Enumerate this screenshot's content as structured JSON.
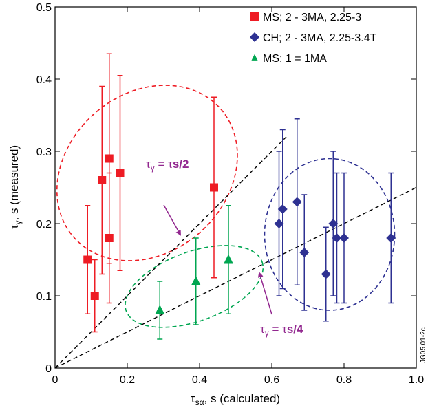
{
  "chart_data": {
    "type": "scatter",
    "xlabel": "τ",
    "xlabel_sub": "sα",
    "xlabel_tail": ", s (calculated)",
    "ylabel": "τ",
    "ylabel_sub": "γ",
    "ylabel_tail": ", s (measured)",
    "xlim": [
      0,
      1.0
    ],
    "ylim": [
      0,
      0.5
    ],
    "x_ticks": [
      "0",
      "0.2",
      "0.4",
      "0.6",
      "0.8",
      "1.0"
    ],
    "y_ticks": [
      "0",
      "0.1",
      "0.2",
      "0.3",
      "0.4",
      "0.5"
    ],
    "x_tick_values": [
      0,
      0.2,
      0.4,
      0.6,
      0.8,
      1.0
    ],
    "y_tick_values": [
      0,
      0.1,
      0.2,
      0.3,
      0.4,
      0.5
    ],
    "grid": false,
    "legend_position": "top-right",
    "series": [
      {
        "name": "MS; 2 - 3MA, 2.25-3",
        "marker": "square",
        "color": "#ee1c24",
        "points": [
          {
            "x": 0.09,
            "y": 0.15,
            "lo": 0.075,
            "hi": 0.225
          },
          {
            "x": 0.11,
            "y": 0.1,
            "lo": 0.05,
            "hi": 0.15
          },
          {
            "x": 0.13,
            "y": 0.26,
            "lo": 0.13,
            "hi": 0.39
          },
          {
            "x": 0.15,
            "y": 0.29,
            "lo": 0.145,
            "hi": 0.435
          },
          {
            "x": 0.15,
            "y": 0.18,
            "lo": 0.09,
            "hi": 0.27
          },
          {
            "x": 0.18,
            "y": 0.27,
            "lo": 0.135,
            "hi": 0.405
          },
          {
            "x": 0.44,
            "y": 0.25,
            "lo": 0.125,
            "hi": 0.375
          }
        ]
      },
      {
        "name": "CH; 2 - 3MA, 2.25-3.4T",
        "marker": "diamond",
        "color": "#2e3192",
        "points": [
          {
            "x": 0.62,
            "y": 0.2,
            "lo": 0.1,
            "hi": 0.3
          },
          {
            "x": 0.63,
            "y": 0.22,
            "lo": 0.11,
            "hi": 0.33
          },
          {
            "x": 0.67,
            "y": 0.23,
            "lo": 0.115,
            "hi": 0.345
          },
          {
            "x": 0.69,
            "y": 0.16,
            "lo": 0.08,
            "hi": 0.24
          },
          {
            "x": 0.75,
            "y": 0.13,
            "lo": 0.065,
            "hi": 0.195
          },
          {
            "x": 0.77,
            "y": 0.2,
            "lo": 0.1,
            "hi": 0.3
          },
          {
            "x": 0.78,
            "y": 0.18,
            "lo": 0.09,
            "hi": 0.27
          },
          {
            "x": 0.8,
            "y": 0.18,
            "lo": 0.09,
            "hi": 0.27
          },
          {
            "x": 0.93,
            "y": 0.18,
            "lo": 0.09,
            "hi": 0.27
          }
        ]
      },
      {
        "name": "MS; 1 = 1MA",
        "marker": "triangle",
        "color": "#00a651",
        "points": [
          {
            "x": 0.29,
            "y": 0.08,
            "lo": 0.04,
            "hi": 0.12
          },
          {
            "x": 0.39,
            "y": 0.12,
            "lo": 0.06,
            "hi": 0.18
          },
          {
            "x": 0.48,
            "y": 0.15,
            "lo": 0.075,
            "hi": 0.225
          }
        ]
      }
    ],
    "reference_lines": [
      {
        "slope": 0.5,
        "x_range": [
          0,
          0.64
        ],
        "label_main": "τ",
        "label_sub": "γ",
        "label_eq": " = τ",
        "label_bold": "s/2"
      },
      {
        "slope": 0.25,
        "x_range": [
          0,
          1.0
        ],
        "label_main": "τ",
        "label_sub": "γ",
        "label_eq": " = τ",
        "label_bold": "s/4"
      }
    ],
    "annotation_color": "#92278f",
    "ellipses": [
      {
        "color": "#ee1c24",
        "cx": 0.255,
        "cy": 0.27,
        "rx": 0.27,
        "ry": 0.11,
        "angle_deg": -41
      },
      {
        "color": "#2e3192",
        "cx": 0.76,
        "cy": 0.185,
        "rx": 0.18,
        "ry": 0.105,
        "angle_deg": 0
      },
      {
        "color": "#00a651",
        "cx": 0.385,
        "cy": 0.113,
        "rx": 0.2,
        "ry": 0.048,
        "angle_deg": -20
      }
    ],
    "figure_id": "JG05.01-2c"
  }
}
